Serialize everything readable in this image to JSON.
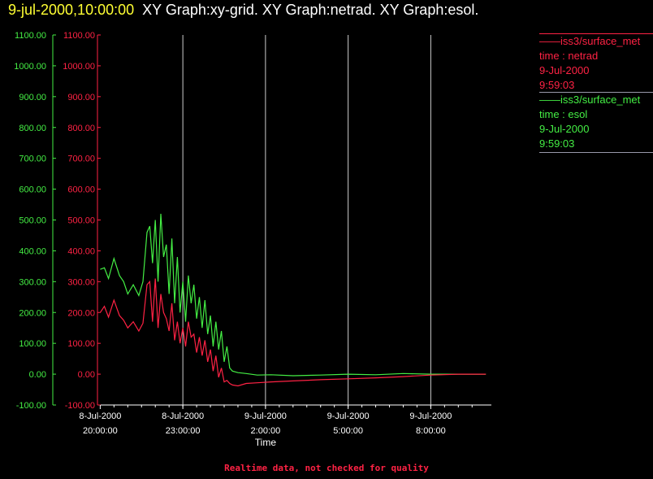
{
  "header": {
    "timestamp": "9-jul-2000,10:00:00",
    "titles": "XY Graph:xy-grid.  XY Graph:netrad.  XY Graph:esol."
  },
  "legend": [
    {
      "source": "iss3/surface_met",
      "variable": "time : netrad",
      "date": "9-Jul-2000",
      "time": "9:59:03",
      "color": "#ff2244"
    },
    {
      "source": "iss3/surface_met",
      "variable": "time : esol",
      "date": "9-Jul-2000",
      "time": "9:59:03",
      "color": "#44ee44"
    }
  ],
  "footer": "Realtime data, not checked for quality",
  "chart_data": {
    "type": "line",
    "xlabel": "Time",
    "x_ticks": [
      {
        "date": "8-Jul-2000",
        "time": "20:00:00"
      },
      {
        "date": "8-Jul-2000",
        "time": "23:00:00"
      },
      {
        "date": "9-Jul-2000",
        "time": "2:00:00"
      },
      {
        "date": "9-Jul-2000",
        "time": "5:00:00"
      },
      {
        "date": "9-Jul-2000",
        "time": "8:00:00"
      }
    ],
    "x_range_hours": [
      19.9,
      34.2
    ],
    "ylim": [
      -100,
      1100
    ],
    "y_ticks": [
      "1100.00",
      "1000.00",
      "900.00",
      "800.00",
      "700.00",
      "600.00",
      "500.00",
      "400.00",
      "300.00",
      "200.00",
      "100.00",
      "0.00",
      "-100.00"
    ],
    "grid": "vertical",
    "series": [
      {
        "name": "iss3/surface_met time : esol",
        "color": "#44ee44",
        "x": [
          20.0,
          20.15,
          20.3,
          20.5,
          20.7,
          20.85,
          21.0,
          21.2,
          21.4,
          21.55,
          21.7,
          21.8,
          21.9,
          22.0,
          22.1,
          22.2,
          22.3,
          22.4,
          22.5,
          22.6,
          22.7,
          22.8,
          22.9,
          23.0,
          23.1,
          23.2,
          23.3,
          23.4,
          23.5,
          23.6,
          23.7,
          23.8,
          23.9,
          24.0,
          24.1,
          24.2,
          24.3,
          24.4,
          24.5,
          24.6,
          24.7,
          24.8,
          25.0,
          25.3,
          25.7,
          26.2,
          27.0,
          28.0,
          29.0,
          30.0,
          31.0,
          32.0,
          33.0,
          34.0
        ],
        "y": [
          340,
          345,
          310,
          375,
          320,
          300,
          260,
          290,
          255,
          300,
          460,
          480,
          360,
          500,
          300,
          520,
          380,
          420,
          260,
          440,
          230,
          380,
          200,
          300,
          170,
          320,
          230,
          290,
          180,
          250,
          150,
          240,
          130,
          190,
          90,
          170,
          80,
          140,
          40,
          90,
          20,
          10,
          5,
          2,
          -3,
          -2,
          -5,
          -3,
          0,
          -2,
          2,
          0,
          0,
          0
        ]
      },
      {
        "name": "iss3/surface_met time : netrad",
        "color": "#ff2244",
        "x": [
          20.0,
          20.15,
          20.3,
          20.5,
          20.7,
          20.85,
          21.0,
          21.2,
          21.4,
          21.55,
          21.7,
          21.8,
          21.9,
          22.0,
          22.1,
          22.2,
          22.3,
          22.4,
          22.5,
          22.6,
          22.7,
          22.8,
          22.9,
          23.0,
          23.1,
          23.2,
          23.3,
          23.4,
          23.5,
          23.6,
          23.7,
          23.8,
          23.9,
          24.0,
          24.1,
          24.2,
          24.3,
          24.4,
          24.5,
          24.6,
          24.7,
          24.8,
          25.0,
          25.3,
          25.7,
          26.2,
          27.0,
          28.0,
          29.0,
          30.0,
          31.0,
          32.0,
          33.0,
          34.0
        ],
        "y": [
          200,
          220,
          185,
          240,
          190,
          175,
          150,
          170,
          140,
          165,
          290,
          300,
          170,
          310,
          150,
          260,
          200,
          180,
          140,
          230,
          110,
          170,
          100,
          150,
          90,
          170,
          120,
          130,
          70,
          120,
          60,
          110,
          40,
          80,
          10,
          60,
          -10,
          20,
          -25,
          -20,
          -30,
          -35,
          -38,
          -30,
          -28,
          -25,
          -22,
          -18,
          -15,
          -12,
          -8,
          -3,
          0,
          0
        ]
      }
    ]
  }
}
